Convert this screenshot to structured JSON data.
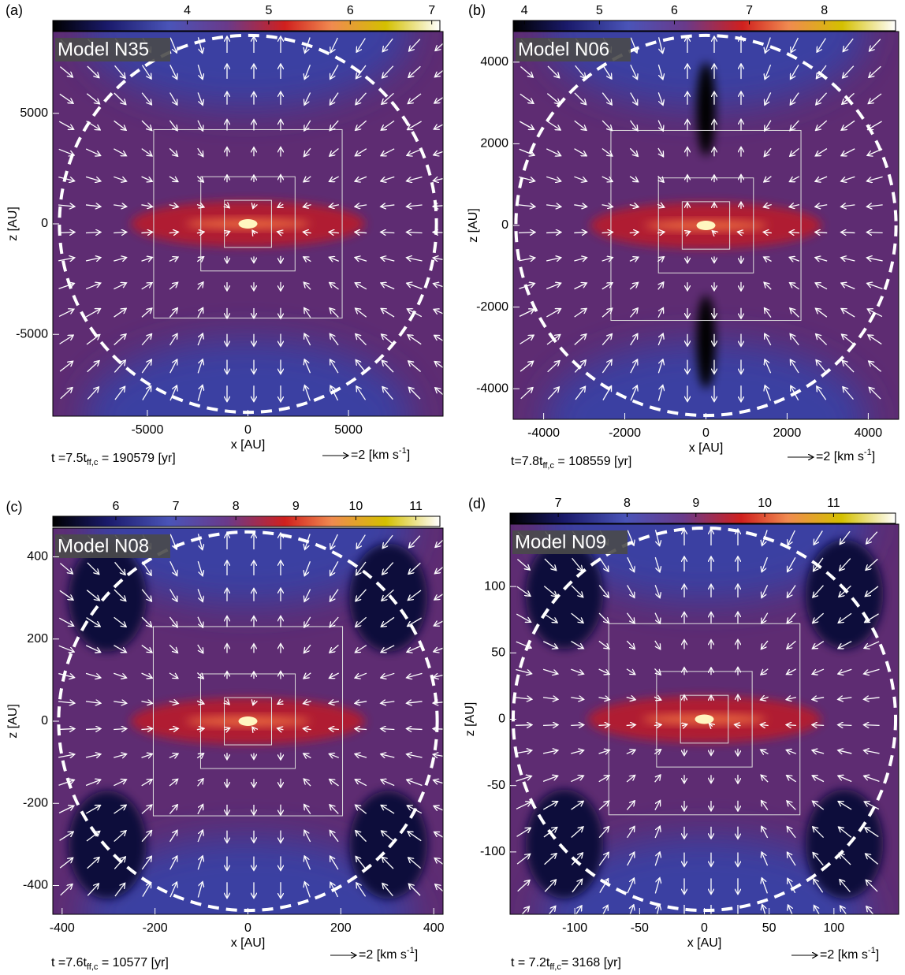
{
  "chart_data": [
    {
      "type": "heatmap",
      "panel_label": "(a)",
      "model_label": "Model N35",
      "xlabel": "x [AU]",
      "ylabel": "z [AU]",
      "xlim": [
        -9700,
        9700
      ],
      "ylim": [
        -8700,
        8700
      ],
      "xticks": [
        -5000,
        0,
        5000
      ],
      "yticks": [
        -5000,
        0,
        5000
      ],
      "clim": [
        2.35,
        7.1
      ],
      "cticks": [
        4,
        5,
        6,
        7
      ],
      "time_label": [
        "t =7.5t",
        "ff,c",
        " = 190579 [yr]"
      ],
      "arrow_label": [
        "=2 [km s",
        "-1",
        "]"
      ]
    },
    {
      "type": "heatmap",
      "panel_label": "(b)",
      "model_label": "Model N06",
      "xlabel": "x [AU]",
      "ylabel": "z [AU]",
      "xlim": [
        -4750,
        4750
      ],
      "ylim": [
        -4750,
        4750
      ],
      "xticks": [
        -4000,
        -2000,
        0,
        2000,
        4000
      ],
      "yticks": [
        -4000,
        -2000,
        0,
        2000,
        4000
      ],
      "clim": [
        3.85,
        8.95
      ],
      "cticks": [
        4,
        5,
        6,
        7,
        8
      ],
      "time_label": [
        "t=7.8t",
        "ff,c",
        " = 108559 [yr]"
      ],
      "arrow_label": [
        "=2 [km s",
        "-1",
        "]"
      ]
    },
    {
      "type": "heatmap",
      "panel_label": "(c)",
      "model_label": "Model N08",
      "xlabel": "x [AU]",
      "ylabel": "z [AU]",
      "xlim": [
        -420,
        420
      ],
      "ylim": [
        -470,
        470
      ],
      "xticks": [
        -400,
        -200,
        0,
        200,
        400
      ],
      "yticks": [
        -400,
        -200,
        0,
        200,
        400
      ],
      "clim": [
        4.95,
        11.4
      ],
      "cticks": [
        6,
        7,
        8,
        9,
        10,
        11
      ],
      "time_label": [
        "t =7.6t",
        "ff,c",
        " = 10577 [yr]"
      ],
      "arrow_label": [
        "=2 [km s",
        "-1",
        "]"
      ]
    },
    {
      "type": "heatmap",
      "panel_label": "(d)",
      "model_label": "Model N09",
      "xlabel": "x [AU]",
      "ylabel": "z [AU]",
      "xlim": [
        -150,
        150
      ],
      "ylim": [
        -147,
        147
      ],
      "xticks": [
        -100,
        -50,
        0,
        50,
        100
      ],
      "yticks": [
        -100,
        -50,
        0,
        50,
        100
      ],
      "clim": [
        6.3,
        11.9
      ],
      "cticks": [
        7,
        8,
        9,
        10,
        11
      ],
      "time_label": [
        "t = 7.2t",
        "ff,c",
        "= 3168 [yr]"
      ],
      "arrow_label": [
        "=2 [km s",
        "-1",
        "]"
      ]
    }
  ]
}
